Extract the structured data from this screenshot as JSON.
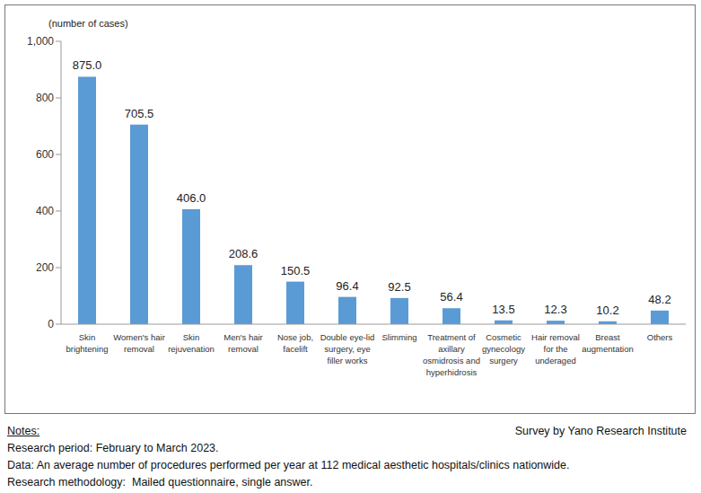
{
  "chart_data": {
    "type": "bar",
    "y_label": "(number of cases)",
    "categories": [
      "Skin brightening",
      "Women's hair removal",
      "Skin rejuvenation",
      "Men's hair removal",
      "Nose job, facelift",
      "Double eye-lid surgery, eye filler works",
      "Slimming",
      "Treatment of axillary osmidrosis and hyperhidrosis",
      "Cosmetic gynecology surgery",
      "Hair removal for the underaged",
      "Breast augmentation",
      "Others"
    ],
    "values": [
      875.0,
      705.5,
      406.0,
      208.6,
      150.5,
      96.4,
      92.5,
      56.4,
      13.5,
      12.3,
      10.2,
      48.2
    ],
    "value_labels": [
      "875.0",
      "705.5",
      "406.0",
      "208.6",
      "150.5",
      "96.4",
      "92.5",
      "56.4",
      "13.5",
      "12.3",
      "10.2",
      "48.2"
    ],
    "color": "#5b9bd5",
    "ylim": [
      0,
      1000
    ],
    "yticks": [
      0,
      200,
      400,
      600,
      800,
      {
        "value": 1000,
        "label": "1,000"
      }
    ],
    "grid": false,
    "data_labels": true,
    "notes_title": "Notes:",
    "notes": [
      "Research period: February to March 2023.",
      "Data: An average number of procedures performed per year at 112 medical aesthetic hospitals/clinics nationwide.",
      "Research methodology:  Mailed questionnaire, single answer."
    ],
    "source": "Survey by Yano Research Institute"
  }
}
